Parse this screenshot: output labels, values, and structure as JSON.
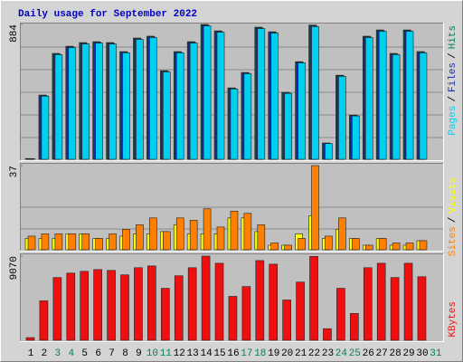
{
  "chart_data": [
    {
      "type": "bar",
      "title": "Daily usage for September 2022",
      "legend_separator": "/",
      "ylim": [
        0,
        884
      ],
      "yticks": [
        884
      ],
      "series": [
        {
          "name": "Hits",
          "color": "#00805c",
          "values": [
            5,
            421,
            694,
            741,
            765,
            771,
            765,
            706,
            795,
            807,
            581,
            706,
            771,
            884,
            842,
            468,
            569,
            866,
            836,
            439,
            640,
            880,
            107,
            551,
            290,
            807,
            848,
            694,
            848,
            706,
            null
          ]
        },
        {
          "name": "Files",
          "color": "#1c2ca8",
          "values": [
            4,
            418,
            690,
            737,
            760,
            767,
            761,
            702,
            790,
            803,
            577,
            702,
            767,
            879,
            838,
            465,
            565,
            861,
            832,
            436,
            636,
            875,
            105,
            548,
            287,
            803,
            843,
            690,
            843,
            702,
            null
          ]
        },
        {
          "name": "Pages",
          "color": "#00d0f0",
          "values": [
            3,
            414,
            686,
            732,
            756,
            762,
            756,
            698,
            786,
            798,
            573,
            698,
            762,
            874,
            833,
            461,
            561,
            857,
            827,
            432,
            632,
            870,
            103,
            544,
            284,
            798,
            839,
            686,
            839,
            698,
            null
          ]
        }
      ]
    },
    {
      "type": "bar",
      "legend_separator": "/",
      "ylim": [
        0,
        37
      ],
      "yticks": [
        37
      ],
      "series": [
        {
          "name": "Visits",
          "color": "#ffff00",
          "values": [
            5,
            5,
            5,
            7,
            7,
            5,
            5,
            6,
            7,
            7,
            8,
            11,
            7,
            7,
            7,
            14,
            14,
            8,
            2,
            2,
            7,
            15,
            5,
            9,
            5,
            2,
            5,
            2,
            2,
            4,
            null
          ]
        },
        {
          "name": "Sites",
          "color": "#ff8000",
          "values": [
            6,
            7,
            7,
            7,
            7,
            5,
            7,
            9,
            11,
            14,
            8,
            14,
            13,
            18,
            10,
            17,
            16,
            11,
            3,
            2,
            5,
            37,
            6,
            14,
            5,
            2,
            5,
            3,
            3,
            4,
            null
          ]
        }
      ]
    },
    {
      "type": "bar",
      "ylim": [
        0,
        9070
      ],
      "yticks": [
        9070
      ],
      "categories": [
        "1",
        "2",
        "3",
        "4",
        "5",
        "6",
        "7",
        "8",
        "9",
        "10",
        "11",
        "12",
        "13",
        "14",
        "15",
        "16",
        "17",
        "18",
        "19",
        "20",
        "21",
        "22",
        "23",
        "24",
        "25",
        "26",
        "27",
        "28",
        "29",
        "30",
        "31"
      ],
      "category_colors": [
        "#000000",
        "#000000",
        "#00805c",
        "#00805c",
        "#000000",
        "#000000",
        "#000000",
        "#000000",
        "#000000",
        "#00805c",
        "#00805c",
        "#000000",
        "#000000",
        "#000000",
        "#000000",
        "#000000",
        "#00805c",
        "#00805c",
        "#000000",
        "#000000",
        "#000000",
        "#000000",
        "#000000",
        "#00805c",
        "#00805c",
        "#000000",
        "#000000",
        "#000000",
        "#000000",
        "#000000",
        "#00805c"
      ],
      "series": [
        {
          "name": "KBytes",
          "color": "#ee1010",
          "values": [
            290,
            4250,
            6760,
            7240,
            7430,
            7620,
            7530,
            7050,
            7820,
            8010,
            5600,
            6950,
            7820,
            9070,
            8300,
            4730,
            5790,
            8590,
            8200,
            4340,
            6270,
            9040,
            1250,
            5600,
            2890,
            7820,
            8300,
            6760,
            8300,
            6850,
            null
          ]
        }
      ]
    }
  ]
}
